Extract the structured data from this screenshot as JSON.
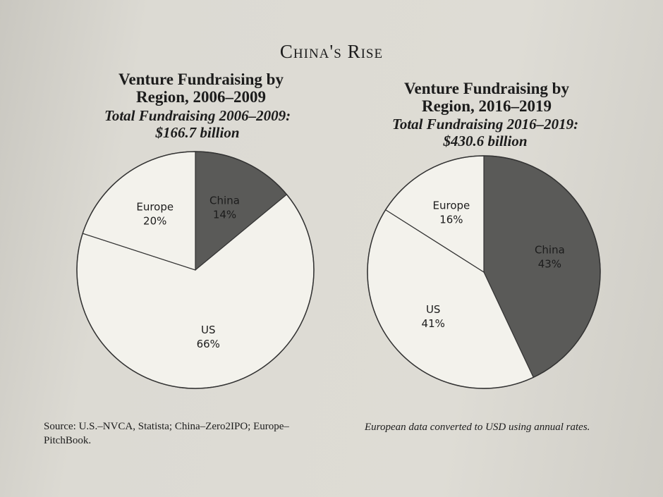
{
  "title": "China's Rise",
  "source": "Source: U.S.–NVCA, Statista; China–Zero2IPO; Europe–PitchBook.",
  "note": "European data converted to USD using annual rates.",
  "chart_data": [
    {
      "type": "pie",
      "title": "Venture Fundraising by Region, 2006–2009",
      "subtitle": "Total Fundraising 2006–2009: $166.7 billion",
      "categories": [
        "China",
        "US",
        "Europe"
      ],
      "values": [
        14,
        66,
        20
      ],
      "value_labels": [
        "14%",
        "66%",
        "20%"
      ],
      "colors": [
        "#5a5a58",
        "#f3f2ec",
        "#f3f2ec"
      ]
    },
    {
      "type": "pie",
      "title": "Venture Fundraising by Region, 2016–2019",
      "subtitle": "Total Fundraising 2016–2019: $430.6 billion",
      "categories": [
        "China",
        "US",
        "Europe"
      ],
      "values": [
        43,
        41,
        16
      ],
      "value_labels": [
        "43%",
        "41%",
        "16%"
      ],
      "colors": [
        "#5a5a58",
        "#f3f2ec",
        "#f3f2ec"
      ]
    }
  ]
}
